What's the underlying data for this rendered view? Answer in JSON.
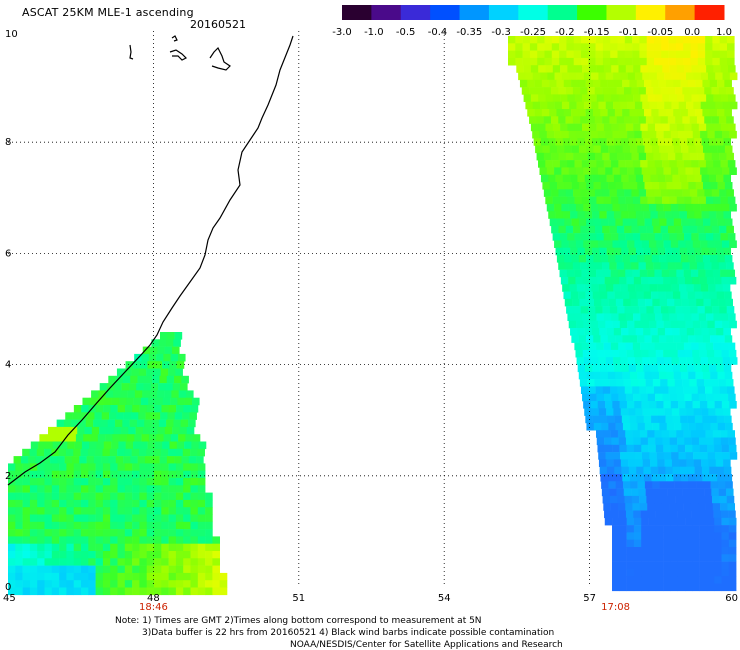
{
  "title": "ASCAT 25KM MLE-1 ascending",
  "date": "20160521",
  "colorbar": {
    "labels": [
      "-3.0",
      "-1.0",
      "-0.5",
      "-0.4",
      "-0.35",
      "-0.3",
      "-0.25",
      "-0.2",
      "-0.15",
      "-0.1",
      "-0.05",
      "0.0",
      "1.0"
    ],
    "colors": [
      "#2a0030",
      "#4a0a8a",
      "#3a2ad8",
      "#0050ff",
      "#0096ff",
      "#00d2ff",
      "#00ffe6",
      "#00ff90",
      "#3cff00",
      "#b4ff00",
      "#fff000",
      "#ffa000",
      "#ff2000"
    ]
  },
  "axes": {
    "x_ticks": [
      "45",
      "48",
      "51",
      "54",
      "57",
      "60"
    ],
    "y_ticks": [
      "0",
      "2",
      "4",
      "6",
      "8",
      "10"
    ],
    "x_range": [
      45,
      60
    ],
    "y_range": [
      0,
      10
    ],
    "gridlines": "dotted"
  },
  "pass_times": [
    "18:46",
    "17:08"
  ],
  "notes": [
    "Note: 1) Times are GMT 2)Times along bottom correspond to measurement at 5N",
    "3)Data buffer is 22 hrs from 20160521 4) Black wind barbs indicate possible contamination",
    "NOAA/NESDIS/Center for Satellite Applications and Research"
  ],
  "colors": {
    "time_label": "#cc2200",
    "coastline": "#000000",
    "grid": "#000000"
  }
}
